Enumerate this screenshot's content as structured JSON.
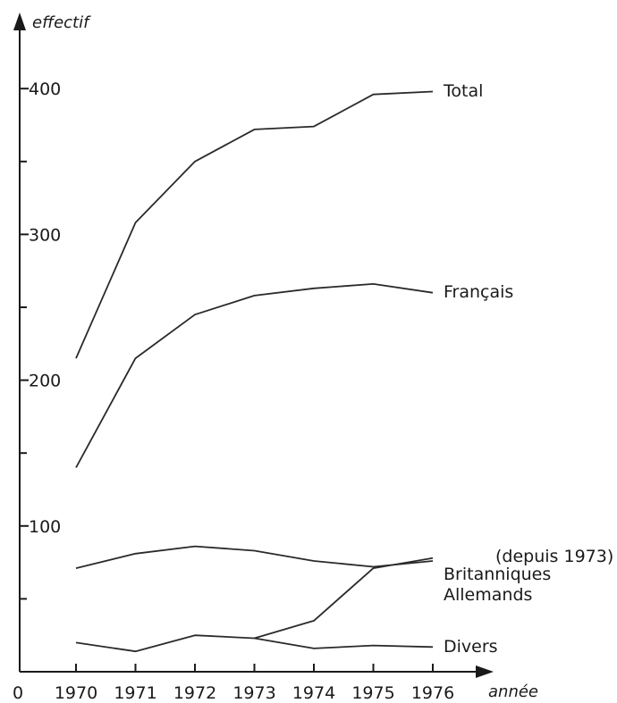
{
  "chart_data": {
    "type": "line",
    "title": "",
    "ylabel": "effectif",
    "xlabel": "année",
    "origin_label": "0",
    "x": [
      1970,
      1971,
      1972,
      1973,
      1974,
      1975,
      1976
    ],
    "x_tick_labels": [
      "1970",
      "1971",
      "1972",
      "1973",
      "1974",
      "1975",
      "1976"
    ],
    "y_ticks": [
      100,
      200,
      300,
      400
    ],
    "y_tick_labels": [
      "100",
      "200",
      "300",
      "400"
    ],
    "ylim": [
      0,
      440
    ],
    "grid": false,
    "legend": "labels at line ends",
    "annotation": "(depuis 1973)",
    "series": [
      {
        "name": "Total",
        "x": [
          1970,
          1971,
          1972,
          1973,
          1974,
          1975,
          1976
        ],
        "values": [
          215,
          308,
          350,
          372,
          374,
          396,
          398
        ]
      },
      {
        "name": "Français",
        "x": [
          1970,
          1971,
          1972,
          1973,
          1974,
          1975,
          1976
        ],
        "values": [
          140,
          215,
          245,
          258,
          263,
          266,
          260
        ]
      },
      {
        "name": "Britanniques",
        "x": [
          1970,
          1971,
          1972,
          1973,
          1974,
          1975,
          1976
        ],
        "values": [
          71,
          81,
          86,
          83,
          76,
          72,
          76
        ]
      },
      {
        "name": "Allemands",
        "x": [
          1973,
          1974,
          1975,
          1976
        ],
        "values": [
          23,
          35,
          71,
          78
        ]
      },
      {
        "name": "Divers",
        "x": [
          1970,
          1971,
          1972,
          1973,
          1974,
          1975,
          1976
        ],
        "values": [
          20,
          14,
          25,
          23,
          16,
          18,
          17
        ]
      }
    ]
  }
}
